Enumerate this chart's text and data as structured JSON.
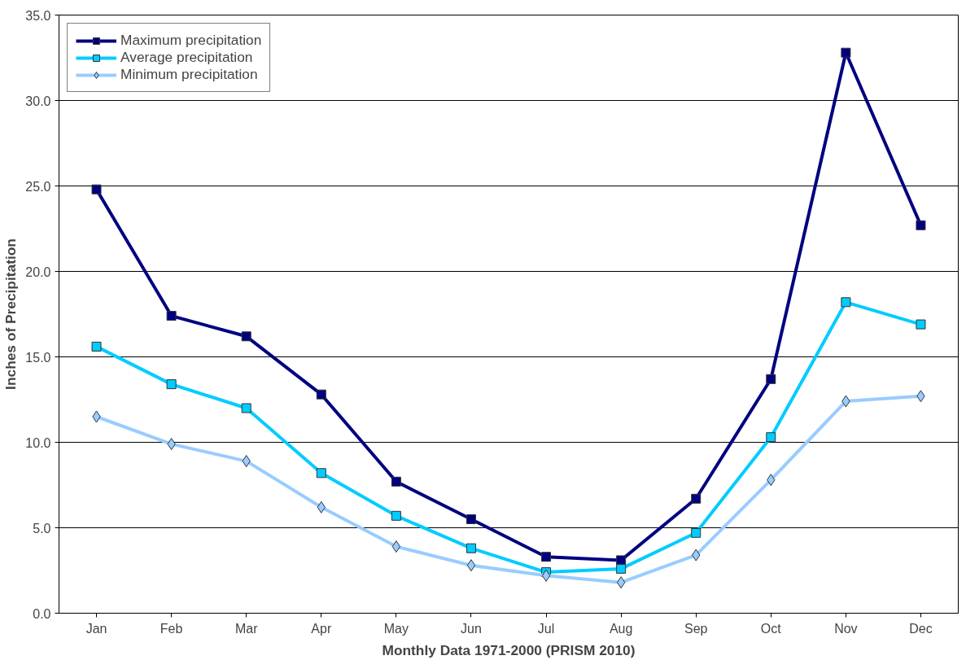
{
  "chart_data": {
    "type": "line",
    "xlabel": "Monthly Data 1971-2000 (PRISM 2010)",
    "ylabel": "Inches of Precipitation",
    "categories": [
      "Jan",
      "Feb",
      "Mar",
      "Apr",
      "May",
      "Jun",
      "Jul",
      "Aug",
      "Sep",
      "Oct",
      "Nov",
      "Dec"
    ],
    "series": [
      {
        "name": "Maximum precipitation",
        "color": "#000080",
        "marker": "square",
        "values": [
          24.8,
          17.4,
          16.2,
          12.8,
          7.7,
          5.5,
          3.3,
          3.1,
          6.7,
          13.7,
          32.8,
          22.7
        ]
      },
      {
        "name": "Average precipitation",
        "color": "#00ccff",
        "marker": "square",
        "values": [
          15.6,
          13.4,
          12.0,
          8.2,
          5.7,
          3.8,
          2.4,
          2.6,
          4.7,
          10.3,
          18.2,
          16.9
        ]
      },
      {
        "name": "Minimum precipitation",
        "color": "#99ccff",
        "marker": "diamond",
        "values": [
          11.5,
          9.9,
          8.9,
          6.2,
          3.9,
          2.8,
          2.2,
          1.8,
          3.4,
          7.8,
          12.4,
          12.7
        ]
      }
    ],
    "ylim": [
      0,
      35
    ],
    "yticks": [
      {
        "value": 0,
        "label": "0.0"
      },
      {
        "value": 5,
        "label": "5.0"
      },
      {
        "value": 10,
        "label": "10.0"
      },
      {
        "value": 15,
        "label": "15.0"
      },
      {
        "value": 20,
        "label": "20.0"
      },
      {
        "value": 25,
        "label": "25.0"
      },
      {
        "value": 30,
        "label": "30.0"
      },
      {
        "value": 35,
        "label": "35.0"
      }
    ],
    "grid": "y",
    "legend": "top left",
    "line_style": "solid"
  }
}
